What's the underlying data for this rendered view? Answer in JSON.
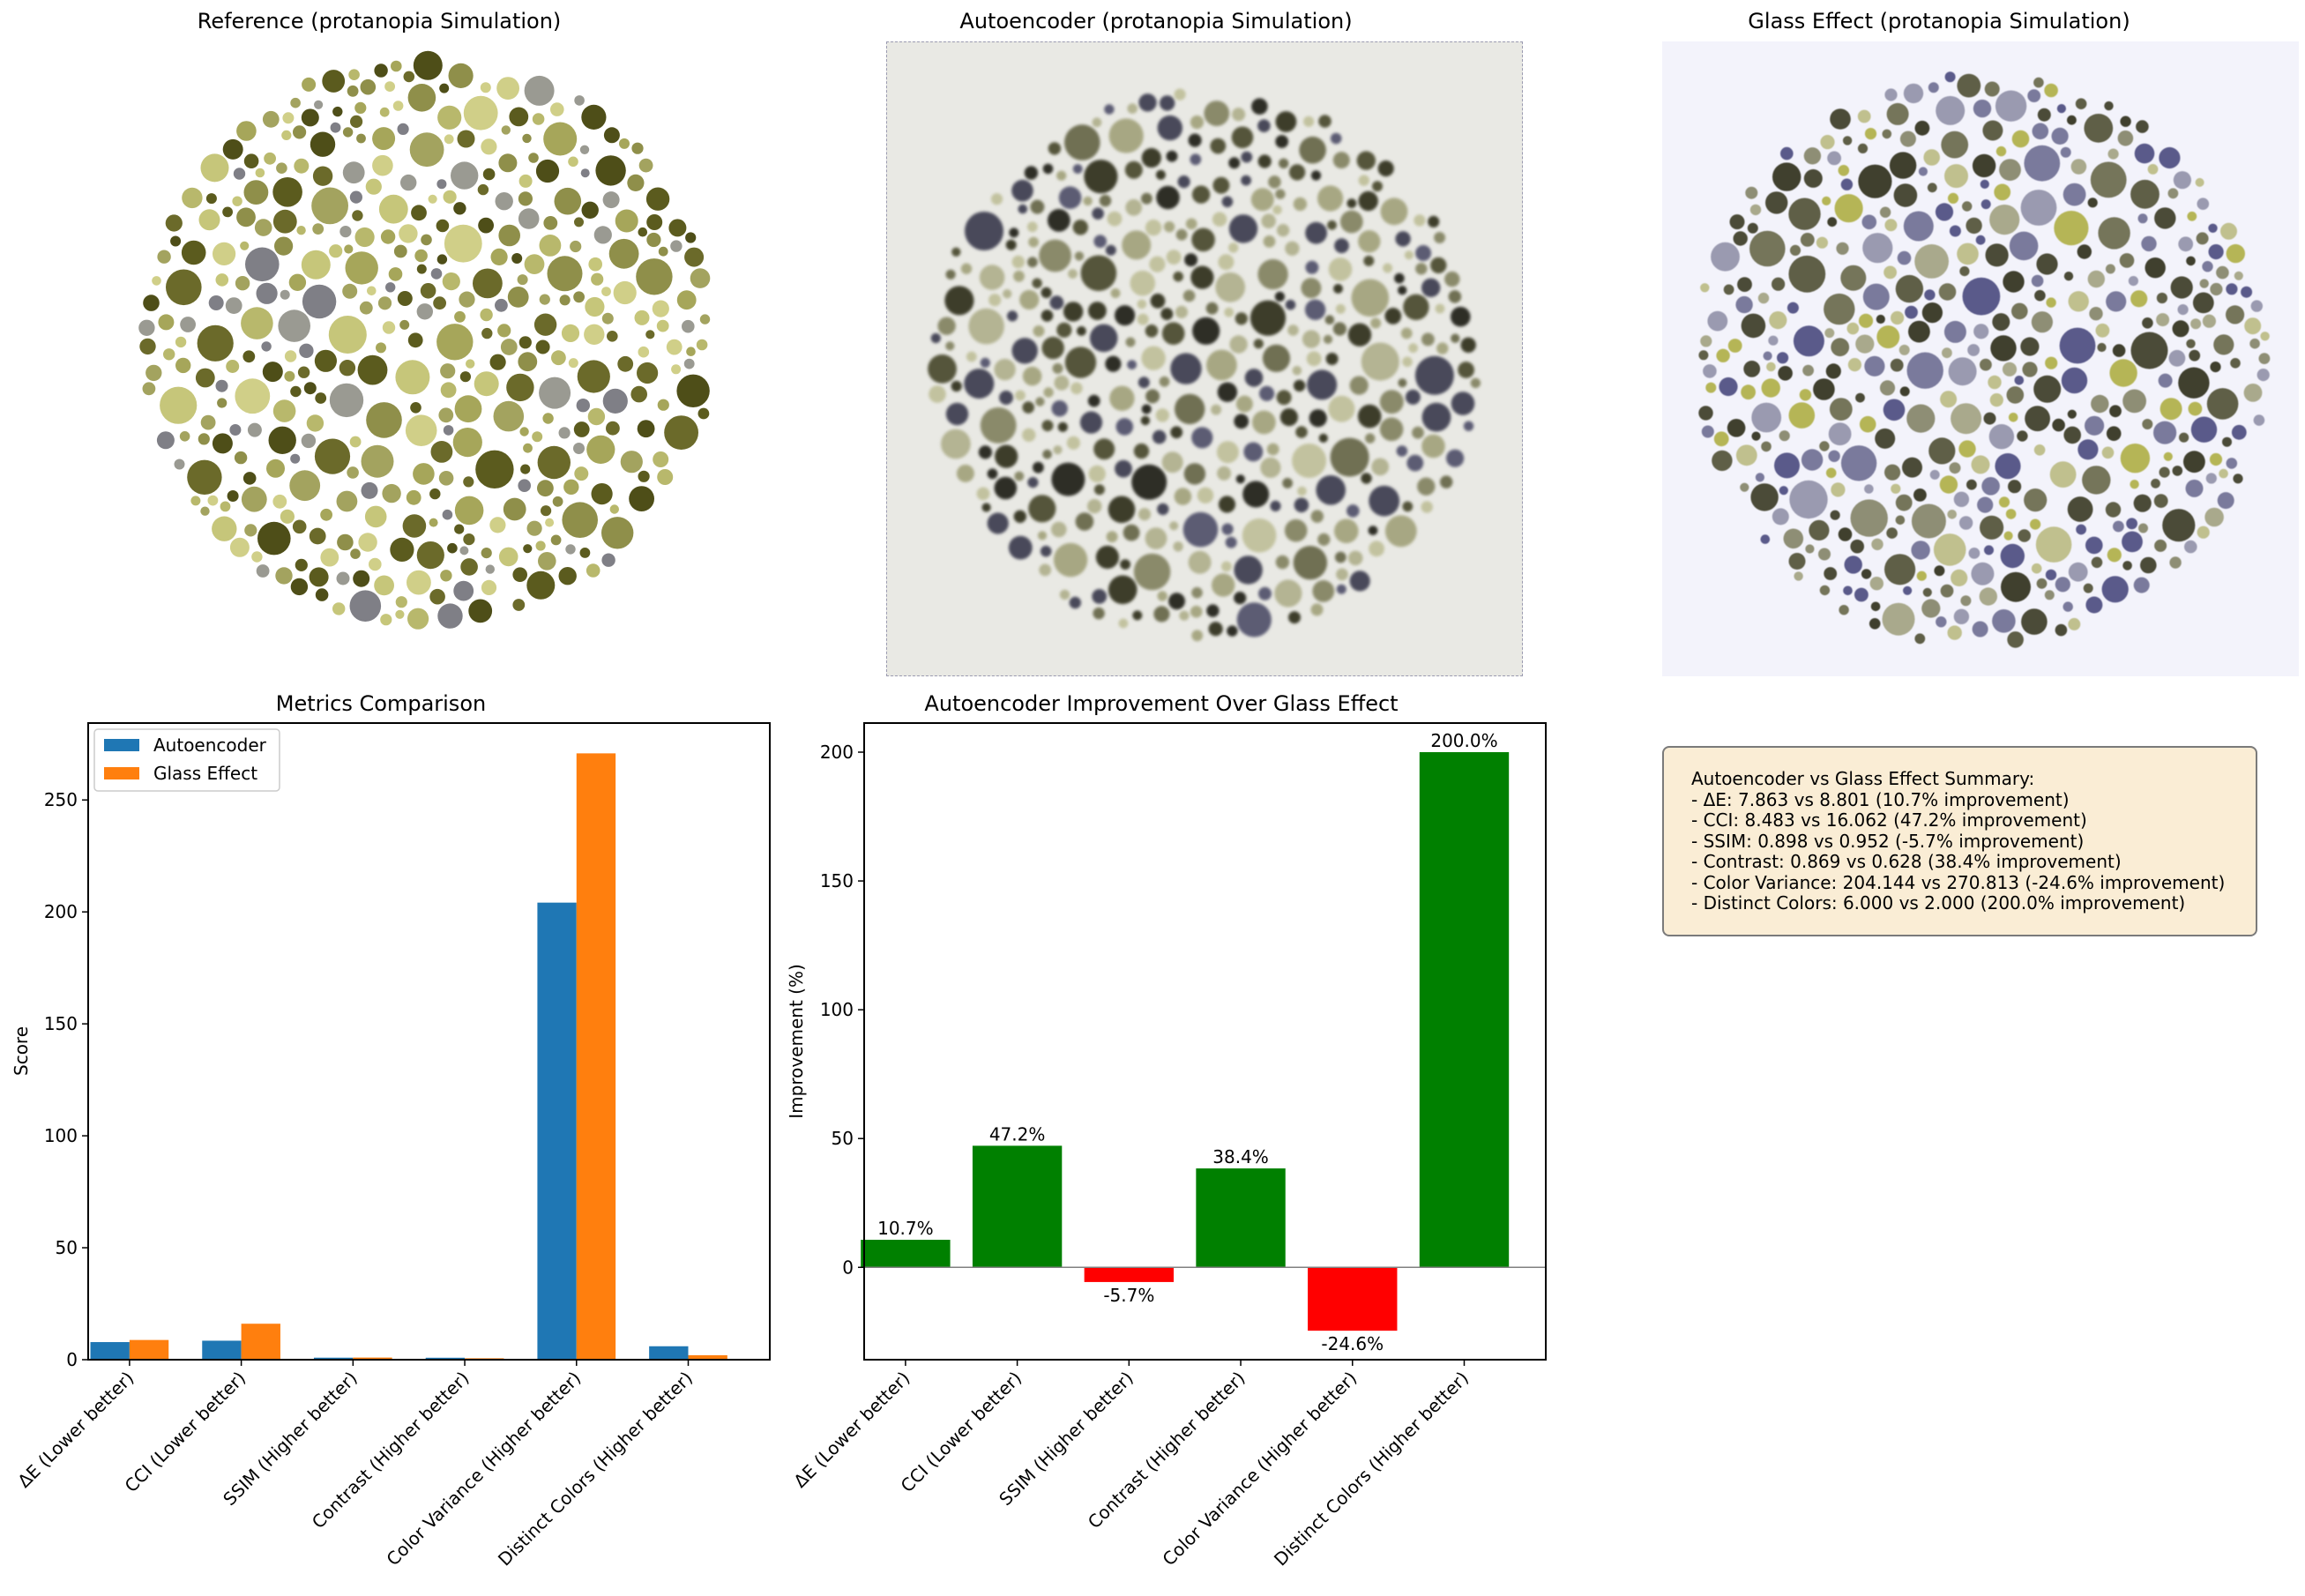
{
  "panels": {
    "reference_title": "Reference (protanopia Simulation)",
    "autoencoder_title": "Autoencoder (protanopia Simulation)",
    "glass_title": "Glass Effect (protanopia Simulation)"
  },
  "colors": {
    "autoencoder": "#1f77b4",
    "glass_effect": "#ff7f0e",
    "positive": "#008000",
    "negative": "#ff0000"
  },
  "chart_data": [
    {
      "type": "bar",
      "title": "Metrics Comparison",
      "xlabel": "",
      "ylabel": "Score",
      "categories": [
        "ΔE (Lower better)",
        "CCI (Lower better)",
        "SSIM (Higher better)",
        "Contrast (Higher better)",
        "Color Variance (Higher better)",
        "Distinct Colors (Higher better)"
      ],
      "series": [
        {
          "name": "Autoencoder",
          "values": [
            7.863,
            8.483,
            0.898,
            0.869,
            204.144,
            6.0
          ]
        },
        {
          "name": "Glass Effect",
          "values": [
            8.801,
            16.062,
            0.952,
            0.628,
            270.813,
            2.0
          ]
        }
      ],
      "yticks": [
        "0",
        "50",
        "100",
        "150",
        "200",
        "250"
      ],
      "ylim": [
        0,
        284.35
      ],
      "legend": "top-left",
      "grid": false
    },
    {
      "type": "bar",
      "title": "Autoencoder Improvement Over Glass Effect",
      "xlabel": "",
      "ylabel": "Improvement (%)",
      "categories": [
        "ΔE (Lower better)",
        "CCI (Lower better)",
        "SSIM (Higher better)",
        "Contrast (Higher better)",
        "Color Variance (Higher better)",
        "Distinct Colors (Higher better)"
      ],
      "values": [
        10.7,
        47.2,
        -5.7,
        38.4,
        -24.6,
        200.0
      ],
      "data_labels": [
        "10.7%",
        "47.2%",
        "-5.7%",
        "38.4%",
        "-24.6%",
        "200.0%"
      ],
      "yticks": [
        "0",
        "50",
        "100",
        "150",
        "200"
      ],
      "ylim": [
        -35.85,
        211.3
      ],
      "baseline": 0,
      "grid": false
    }
  ],
  "summary": {
    "lines": [
      "Autoencoder vs Glass Effect Summary:",
      "- ΔE: 7.863 vs 8.801 (10.7% improvement)",
      "- CCI: 8.483 vs 16.062 (47.2% improvement)",
      "- SSIM: 0.898 vs 0.952 (-5.7% improvement)",
      "- Contrast: 0.869 vs 0.628 (38.4% improvement)",
      "- Color Variance: 204.144 vs 270.813 (-24.6% improvement)",
      "- Distinct Colors: 6.000 vs 2.000 (200.0% improvement)"
    ]
  }
}
